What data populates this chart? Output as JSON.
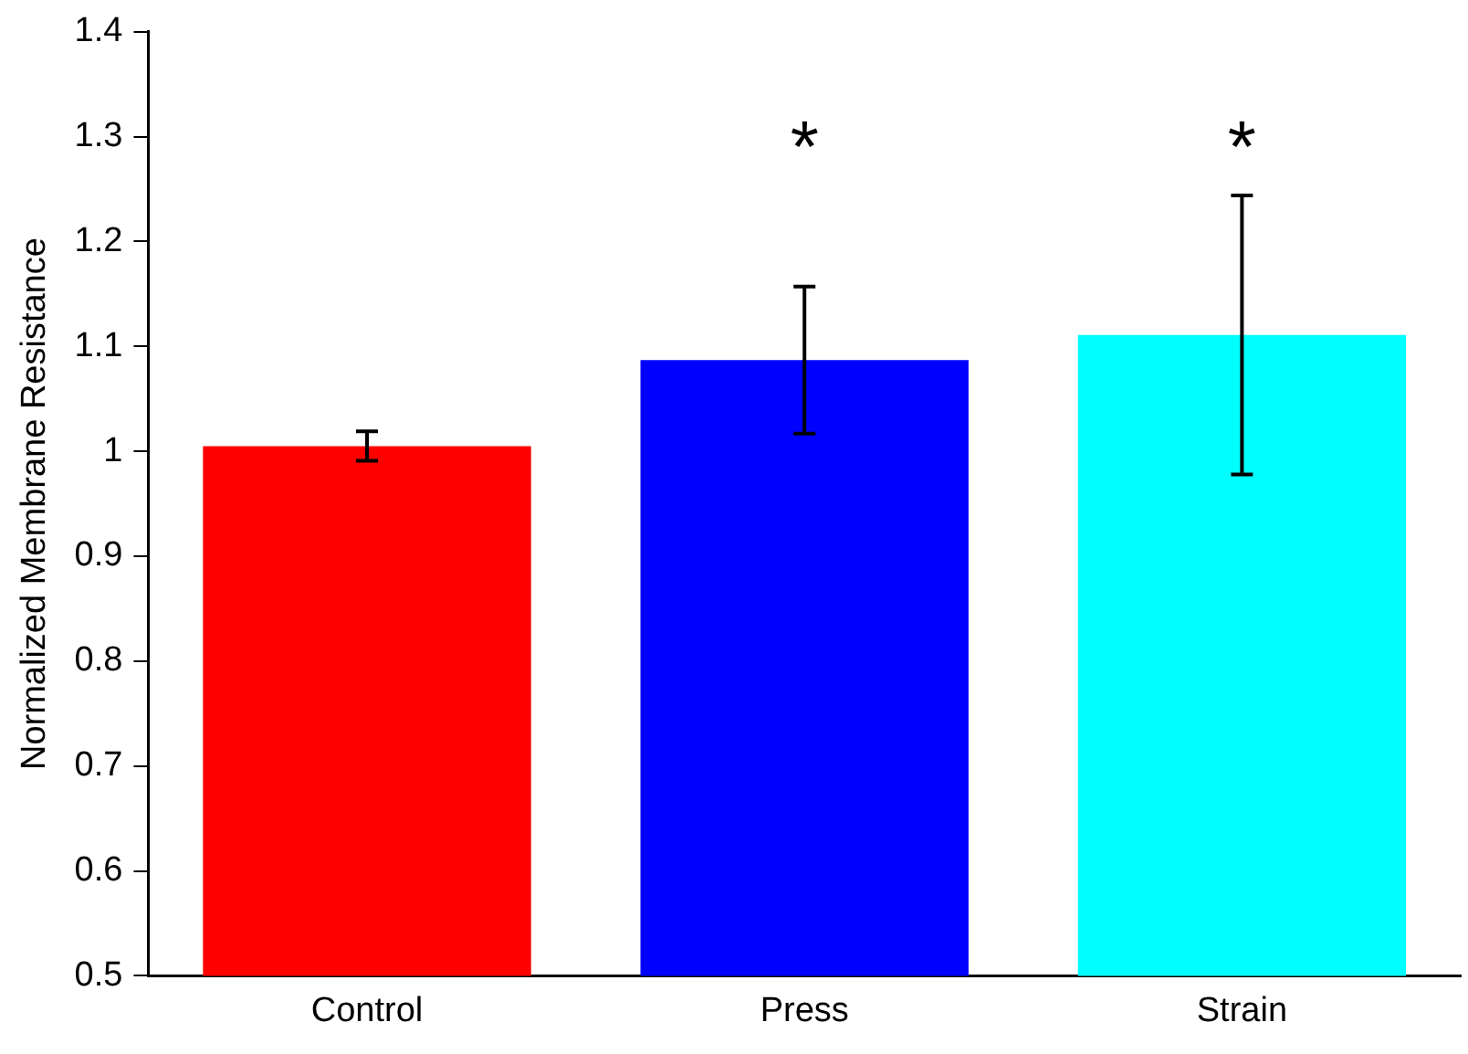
{
  "chart_data": {
    "type": "bar",
    "ylabel": "Normalized Membrane Resistance",
    "categories": [
      "Control",
      "Press",
      "Strain"
    ],
    "values": [
      1.005,
      1.087,
      1.111
    ],
    "colors": [
      "#ff0000",
      "#0000ff",
      "#00ffff"
    ],
    "errors": [
      0.014,
      0.07,
      0.133
    ],
    "ylim": [
      0.5,
      1.4
    ],
    "yticks": [
      0.5,
      0.6,
      0.7,
      0.8,
      0.9,
      1,
      1.1,
      1.2,
      1.3,
      1.4
    ],
    "grid": false,
    "legend": false,
    "annotations": [
      "*",
      "*"
    ]
  }
}
